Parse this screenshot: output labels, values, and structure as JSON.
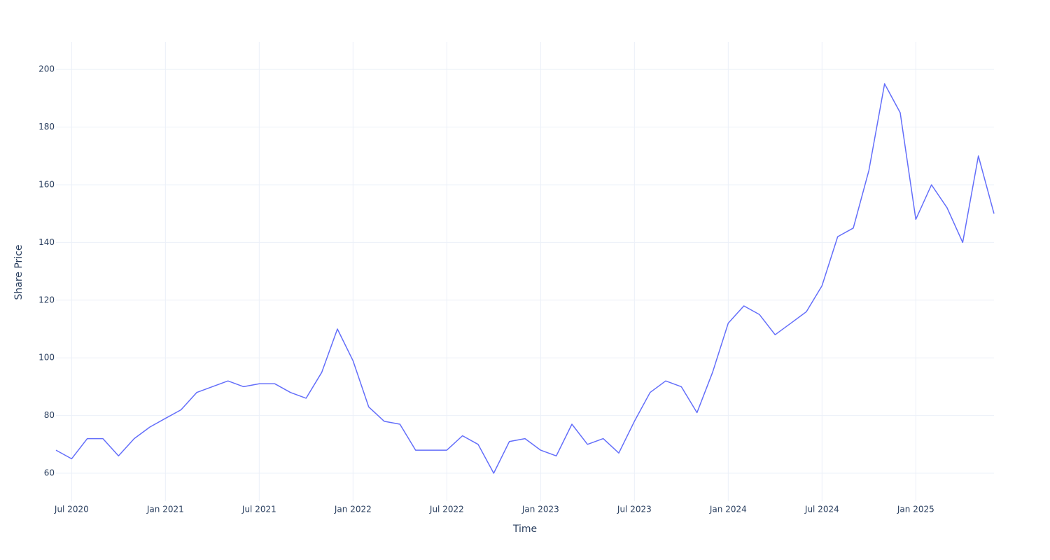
{
  "chart_data": {
    "type": "line",
    "x_label": "Time",
    "y_label": "Share Price",
    "x": [
      "2020-06",
      "2020-07",
      "2020-08",
      "2020-09",
      "2020-10",
      "2020-11",
      "2020-12",
      "2021-01",
      "2021-02",
      "2021-03",
      "2021-04",
      "2021-05",
      "2021-06",
      "2021-07",
      "2021-08",
      "2021-09",
      "2021-10",
      "2021-11",
      "2021-12",
      "2022-01",
      "2022-02",
      "2022-03",
      "2022-04",
      "2022-05",
      "2022-06",
      "2022-07",
      "2022-08",
      "2022-09",
      "2022-10",
      "2022-11",
      "2022-12",
      "2023-01",
      "2023-02",
      "2023-03",
      "2023-04",
      "2023-05",
      "2023-06",
      "2023-07",
      "2023-08",
      "2023-09",
      "2023-10",
      "2023-11",
      "2023-12",
      "2024-01",
      "2024-02",
      "2024-03",
      "2024-04",
      "2024-05",
      "2024-06",
      "2024-07",
      "2024-08",
      "2024-09",
      "2024-10",
      "2024-11",
      "2024-12",
      "2025-01",
      "2025-02",
      "2025-03",
      "2025-04",
      "2025-05",
      "2025-06"
    ],
    "series": [
      {
        "color": "#636efa",
        "values": [
          68,
          65,
          72,
          72,
          66,
          72,
          76,
          79,
          82,
          88,
          90,
          92,
          90,
          91,
          91,
          88,
          86,
          95,
          110,
          99,
          83,
          78,
          77,
          68,
          68,
          68,
          73,
          70,
          60,
          71,
          72,
          68,
          66,
          77,
          70,
          72,
          67,
          78,
          88,
          92,
          90,
          81,
          95,
          112,
          118,
          115,
          108,
          112,
          116,
          125,
          142,
          145,
          165,
          195,
          185,
          148,
          160,
          152,
          140,
          170,
          150
        ]
      }
    ],
    "xlim": [
      "2020-06",
      "2025-06"
    ],
    "xticks": [
      {
        "value": "2020-07",
        "label": "Jul 2020"
      },
      {
        "value": "2021-01",
        "label": "Jan 2021"
      },
      {
        "value": "2021-07",
        "label": "Jul 2021"
      },
      {
        "value": "2022-01",
        "label": "Jan 2022"
      },
      {
        "value": "2022-07",
        "label": "Jul 2022"
      },
      {
        "value": "2023-01",
        "label": "Jan 2023"
      },
      {
        "value": "2023-07",
        "label": "Jul 2023"
      },
      {
        "value": "2024-01",
        "label": "Jan 2024"
      },
      {
        "value": "2024-07",
        "label": "Jul 2024"
      },
      {
        "value": "2025-01",
        "label": "Jan 2025"
      }
    ],
    "ylim": [
      50.3,
      209.5
    ],
    "yticks": [
      60,
      80,
      100,
      120,
      140,
      160,
      180,
      200
    ],
    "grid": true
  }
}
